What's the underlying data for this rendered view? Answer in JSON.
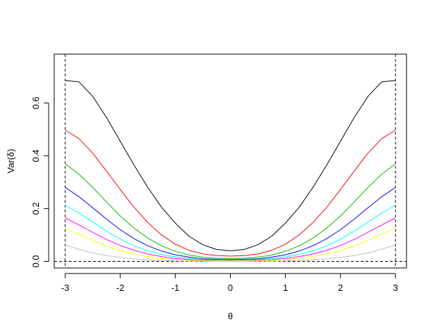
{
  "chart_data": {
    "type": "line",
    "title": "",
    "xlabel": "θ",
    "ylabel": "Var(δ)",
    "xlim": [
      -3.2,
      3.2
    ],
    "ylim": [
      -0.025,
      0.785
    ],
    "x_ticks": [
      -3,
      -2,
      -1,
      0,
      1,
      2,
      3
    ],
    "y_ticks": [
      0.0,
      0.2,
      0.4,
      0.6
    ],
    "x_tick_labels": [
      "-3",
      "-2",
      "-1",
      "0",
      "1",
      "2",
      "3"
    ],
    "y_tick_labels": [
      "0.0",
      "0.2",
      "0.4",
      "0.6"
    ],
    "grid": false,
    "reference_lines": [
      {
        "orientation": "vertical",
        "value": -3,
        "style": "dashed"
      },
      {
        "orientation": "vertical",
        "value": 3,
        "style": "dashed"
      },
      {
        "orientation": "horizontal",
        "value": 0,
        "style": "dashed"
      }
    ],
    "x": [
      -3,
      -2.75,
      -2.5,
      -2.25,
      -2,
      -1.75,
      -1.5,
      -1.25,
      -1,
      -0.75,
      -0.5,
      -0.25,
      0,
      0.25,
      0.5,
      0.75,
      1,
      1.25,
      1.5,
      1.75,
      2,
      2.25,
      2.5,
      2.75,
      3
    ],
    "series": [
      {
        "color": "#000000",
        "values": [
          0.685,
          0.68,
          0.625,
          0.545,
          0.455,
          0.365,
          0.28,
          0.205,
          0.145,
          0.095,
          0.063,
          0.045,
          0.04,
          0.045,
          0.063,
          0.095,
          0.145,
          0.205,
          0.28,
          0.365,
          0.455,
          0.545,
          0.625,
          0.68,
          0.685
        ]
      },
      {
        "color": "#ff0000",
        "values": [
          0.497,
          0.465,
          0.41,
          0.342,
          0.272,
          0.205,
          0.147,
          0.1,
          0.065,
          0.042,
          0.028,
          0.022,
          0.02,
          0.022,
          0.028,
          0.042,
          0.065,
          0.1,
          0.147,
          0.205,
          0.272,
          0.342,
          0.41,
          0.465,
          0.497
        ]
      },
      {
        "color": "#00bb00",
        "values": [
          0.37,
          0.33,
          0.28,
          0.225,
          0.172,
          0.126,
          0.088,
          0.059,
          0.038,
          0.024,
          0.016,
          0.012,
          0.011,
          0.012,
          0.016,
          0.024,
          0.038,
          0.059,
          0.088,
          0.126,
          0.172,
          0.225,
          0.28,
          0.33,
          0.37
        ]
      },
      {
        "color": "#0000ff",
        "values": [
          0.28,
          0.245,
          0.203,
          0.16,
          0.12,
          0.086,
          0.059,
          0.039,
          0.025,
          0.016,
          0.01,
          0.008,
          0.007,
          0.008,
          0.01,
          0.016,
          0.025,
          0.039,
          0.059,
          0.086,
          0.12,
          0.16,
          0.203,
          0.245,
          0.28
        ]
      },
      {
        "color": "#00ffff",
        "values": [
          0.213,
          0.183,
          0.149,
          0.115,
          0.084,
          0.059,
          0.04,
          0.026,
          0.017,
          0.011,
          0.007,
          0.005,
          0.004,
          0.005,
          0.007,
          0.011,
          0.017,
          0.026,
          0.04,
          0.059,
          0.084,
          0.115,
          0.149,
          0.183,
          0.213
        ]
      },
      {
        "color": "#ff00ff",
        "values": [
          0.165,
          0.138,
          0.11,
          0.083,
          0.06,
          0.042,
          0.028,
          0.018,
          0.011,
          0.007,
          0.005,
          0.003,
          0.003,
          0.003,
          0.005,
          0.007,
          0.011,
          0.018,
          0.028,
          0.042,
          0.06,
          0.083,
          0.11,
          0.138,
          0.165
        ]
      },
      {
        "color": "#ffff00",
        "values": [
          0.127,
          0.103,
          0.079,
          0.058,
          0.041,
          0.028,
          0.018,
          0.011,
          0.007,
          0.004,
          0.003,
          0.002,
          0.002,
          0.002,
          0.003,
          0.004,
          0.007,
          0.011,
          0.018,
          0.028,
          0.041,
          0.058,
          0.079,
          0.103,
          0.127
        ]
      },
      {
        "color": "#bebebe",
        "values": [
          0.062,
          0.046,
          0.032,
          0.022,
          0.015,
          0.01,
          0.006,
          0.004,
          0.002,
          0.001,
          0.001,
          0.0,
          0.0,
          0.0,
          0.001,
          0.001,
          0.002,
          0.004,
          0.006,
          0.01,
          0.015,
          0.022,
          0.032,
          0.046,
          0.062
        ]
      }
    ]
  }
}
